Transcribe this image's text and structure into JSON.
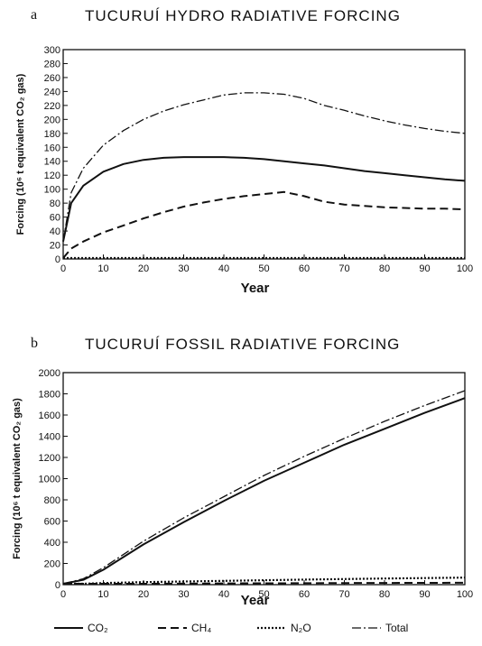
{
  "chart_data": [
    {
      "type": "line",
      "panel_letter": "a",
      "title": "TUCURUÍ HYDRO RADIATIVE FORCING",
      "xlabel": "Year",
      "ylabel": "Forcing (10⁶ t equivalent CO₂ gas)",
      "xlim": [
        0,
        100
      ],
      "ylim": [
        0,
        300
      ],
      "x_ticks": [
        "0",
        "10",
        "20",
        "30",
        "40",
        "50",
        "60",
        "70",
        "80",
        "90",
        "100"
      ],
      "y_ticks": [
        "0",
        "20",
        "40",
        "60",
        "80",
        "100",
        "120",
        "140",
        "160",
        "180",
        "200",
        "220",
        "240",
        "260",
        "280",
        "300"
      ],
      "x": [
        0,
        2,
        5,
        10,
        15,
        20,
        25,
        30,
        35,
        40,
        45,
        50,
        55,
        60,
        65,
        70,
        75,
        80,
        85,
        90,
        95,
        100
      ],
      "series": [
        {
          "name": "CO₂",
          "style": "solid",
          "values": [
            25,
            80,
            105,
            125,
            136,
            142,
            145,
            146,
            146,
            146,
            145,
            143,
            140,
            137,
            134,
            130,
            126,
            123,
            120,
            117,
            114,
            112
          ]
        },
        {
          "name": "CH₄",
          "style": "dashed",
          "values": [
            0,
            15,
            25,
            38,
            48,
            58,
            67,
            75,
            81,
            86,
            90,
            93,
            96,
            90,
            82,
            78,
            76,
            74,
            73,
            72,
            72,
            71
          ]
        },
        {
          "name": "N₂O",
          "style": "dotted",
          "values": [
            0,
            0,
            0,
            0,
            0,
            0,
            0,
            0,
            0,
            0,
            0,
            0,
            0,
            0,
            0,
            0,
            0,
            0,
            0,
            0,
            0,
            0
          ]
        },
        {
          "name": "Total",
          "style": "dashdot",
          "values": [
            25,
            95,
            130,
            163,
            184,
            200,
            212,
            221,
            228,
            235,
            238,
            238,
            236,
            230,
            220,
            213,
            205,
            198,
            192,
            187,
            183,
            180
          ]
        }
      ]
    },
    {
      "type": "line",
      "panel_letter": "b",
      "title": "TUCURUÍ FOSSIL RADIATIVE FORCING",
      "xlabel": "Year",
      "ylabel": "Forcing (10⁶ t equivalent CO₂ gas)",
      "xlim": [
        0,
        100
      ],
      "ylim": [
        0,
        2000
      ],
      "x_ticks": [
        "0",
        "10",
        "20",
        "30",
        "40",
        "50",
        "60",
        "70",
        "80",
        "90",
        "100"
      ],
      "y_ticks": [
        "0",
        "200",
        "400",
        "600",
        "800",
        "1000",
        "1200",
        "1400",
        "1600",
        "1800",
        "2000"
      ],
      "x": [
        0,
        5,
        10,
        20,
        30,
        40,
        50,
        60,
        70,
        80,
        90,
        100
      ],
      "series": [
        {
          "name": "CO₂",
          "style": "solid",
          "values": [
            0,
            45,
            140,
            380,
            590,
            790,
            980,
            1150,
            1320,
            1470,
            1620,
            1760
          ]
        },
        {
          "name": "CH₄",
          "style": "dashed",
          "values": [
            0,
            3,
            5,
            8,
            10,
            12,
            13,
            14,
            15,
            16,
            17,
            18
          ]
        },
        {
          "name": "N₂O",
          "style": "dotted",
          "values": [
            0,
            8,
            15,
            24,
            30,
            36,
            42,
            48,
            53,
            58,
            62,
            66
          ]
        },
        {
          "name": "Total",
          "style": "dashdot",
          "values": [
            0,
            55,
            160,
            410,
            630,
            830,
            1030,
            1210,
            1380,
            1540,
            1690,
            1830
          ]
        }
      ]
    }
  ],
  "legend": [
    {
      "label": "CO₂",
      "style": "solid"
    },
    {
      "label": "CH₄",
      "style": "dashed"
    },
    {
      "label": "N₂O",
      "style": "dotted"
    },
    {
      "label": "Total",
      "style": "dashdot"
    }
  ]
}
